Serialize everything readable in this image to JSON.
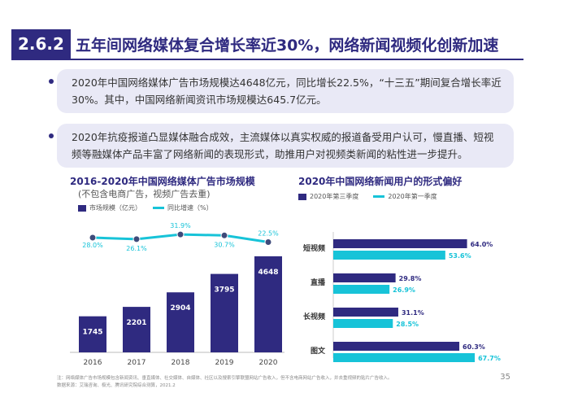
{
  "header": {
    "section_number": "2.6.2",
    "headline": "五年间网络媒体复合增长率近30%，网络新闻视频化创新加速"
  },
  "bullets": [
    "2020年中国网络媒体广告市场规模达4648亿元，同比增长22.5%，“十三五”期间复合增长率近30%。其中，中国网络新闻资讯市场规模达645.7亿元。",
    "2020年抗疫报道凸显媒体融合成效，主流媒体以真实权威的报道备受用户认可，慢直播、短视频等融媒体产品丰富了网络新闻的表现形式，助推用户对视频类新闻的粘性进一步提升。"
  ],
  "footnote": {
    "line1": "注：网络媒体广告市场规模包含新闻资讯、垂直媒体、社交媒体、自媒体、社区以及搜索引擎联盟网站广告收入，但不含电商网站广告收入，并去重视频的贴片广告收入。",
    "line2": "数据来源：艾瑞咨询、极光、腾讯研究院综合测算，2021.2"
  },
  "page_number": "35",
  "colors": {
    "navy": "#2f2a80",
    "cyan": "#17c3d8",
    "bg_box": "#e9e9f6"
  },
  "chart_data": [
    {
      "type": "bar",
      "title": "2016-2020年中国网络媒体广告市场规模",
      "subtitle": "(不包含电商广告，视频广告去重)",
      "categories": [
        "2016",
        "2017",
        "2018",
        "2019",
        "2020"
      ],
      "series": [
        {
          "name": "市场规模（亿元）",
          "kind": "bar",
          "values": [
            1745,
            2201,
            2904,
            3795,
            4648
          ]
        },
        {
          "name": "同比增速（%）",
          "kind": "line",
          "values": [
            28.0,
            26.1,
            31.9,
            30.7,
            22.5
          ],
          "labels": [
            "28.0%",
            "26.1%",
            "31.9%",
            "30.7%",
            "22.5%"
          ]
        }
      ],
      "ylim": [
        0,
        5000
      ],
      "xlabel": "",
      "ylabel": ""
    },
    {
      "type": "bar",
      "orientation": "horizontal",
      "title": "2020年中国网络新闻用户的形式偏好",
      "categories": [
        "短视频",
        "直播",
        "长视频",
        "图文"
      ],
      "series": [
        {
          "name": "2020年第三季度",
          "values": [
            64.0,
            29.8,
            31.1,
            60.3
          ]
        },
        {
          "name": "2020年第一季度",
          "values": [
            53.6,
            26.9,
            28.5,
            67.7
          ]
        }
      ],
      "xlim": [
        0,
        70
      ]
    }
  ]
}
